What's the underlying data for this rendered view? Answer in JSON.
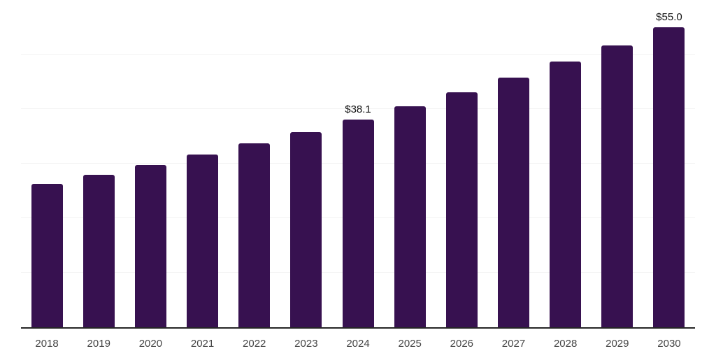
{
  "chart_data": {
    "type": "bar",
    "title": "",
    "categories": [
      "2018",
      "2019",
      "2020",
      "2021",
      "2022",
      "2023",
      "2024",
      "2025",
      "2026",
      "2027",
      "2028",
      "2029",
      "2030"
    ],
    "values": [
      26.3,
      28.0,
      29.8,
      31.7,
      33.7,
      35.8,
      38.1,
      40.5,
      43.1,
      45.8,
      48.7,
      51.7,
      55.0
    ],
    "data_labels": {
      "2024": "$38.1",
      "2030": "$55.0"
    },
    "xlabel": "",
    "ylabel": "",
    "ylim": [
      0,
      60
    ],
    "gridline_step": 10,
    "grid": true,
    "legend": false,
    "colors": {
      "bar": "#371150",
      "gridline": "#f2f2f2",
      "axis_line": "#262626",
      "tick_label": "#444444",
      "data_label": "#111111",
      "background": "#ffffff"
    }
  }
}
